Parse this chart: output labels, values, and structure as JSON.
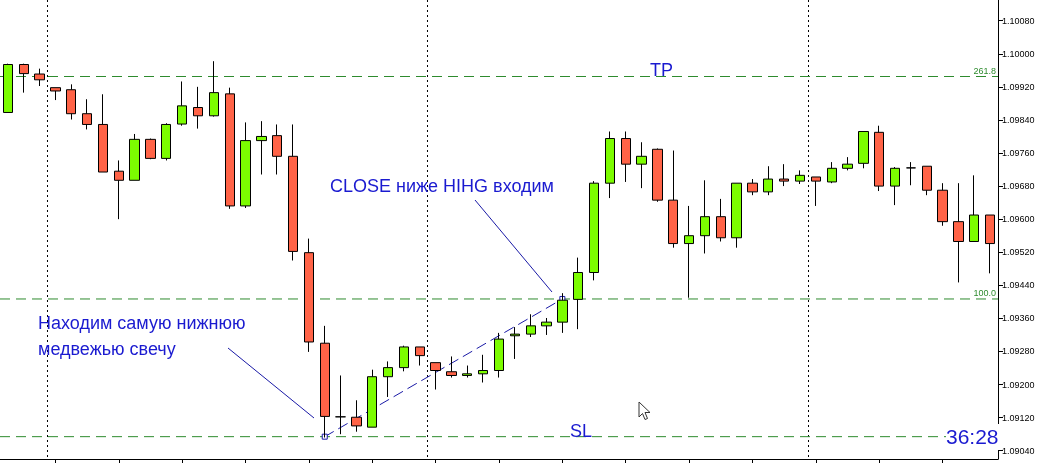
{
  "chart_data": {
    "type": "candlestick",
    "tick_labels": "y",
    "grid": "x",
    "categories": [
      null,
      null,
      null,
      null,
      null,
      null,
      null,
      null,
      null,
      null,
      null,
      null,
      null,
      null,
      null,
      null,
      null,
      null,
      null,
      null,
      null,
      null,
      null,
      null,
      null,
      null,
      null,
      null,
      null,
      null,
      null,
      null,
      null,
      null,
      null,
      null,
      null,
      null,
      null,
      null,
      null,
      null,
      null,
      null,
      null,
      null,
      null,
      null,
      null,
      null,
      null,
      null,
      null,
      null,
      null,
      null,
      null,
      null,
      null,
      null,
      null,
      null,
      null
    ],
    "ohlc": [
      [
        1.09858,
        1.09976,
        1.09858,
        1.09974
      ],
      [
        1.09974,
        1.09976,
        1.09906,
        1.09952
      ],
      [
        1.09951,
        1.09964,
        1.09922,
        1.09937
      ],
      [
        1.09918,
        1.09918,
        1.09888,
        1.0991
      ],
      [
        1.09913,
        1.09926,
        1.09841,
        1.09855
      ],
      [
        1.09855,
        1.0989,
        1.09817,
        1.09829
      ],
      [
        1.09829,
        1.09902,
        1.09714,
        1.09714
      ],
      [
        1.09716,
        1.09742,
        1.096,
        1.09694
      ],
      [
        1.09694,
        1.09806,
        1.09694,
        1.09793
      ],
      [
        1.09793,
        1.09795,
        1.09745,
        1.09747
      ],
      [
        1.09747,
        1.09832,
        1.09742,
        1.09829
      ],
      [
        1.0983,
        1.09933,
        1.09826,
        1.09874
      ],
      [
        1.0987,
        1.0992,
        1.09819,
        1.0985
      ],
      [
        1.0985,
        1.09982,
        1.09848,
        1.09906
      ],
      [
        1.09903,
        1.09918,
        1.09625,
        1.09632
      ],
      [
        1.09632,
        1.09834,
        1.09627,
        1.0979
      ],
      [
        1.0979,
        1.09837,
        1.09708,
        1.098
      ],
      [
        1.09802,
        1.09829,
        1.09708,
        1.09752
      ],
      [
        1.09752,
        1.09829,
        1.095,
        1.09522
      ],
      [
        1.09519,
        1.09553,
        1.09279,
        1.09303
      ],
      [
        1.093,
        1.09342,
        1.09072,
        1.09123
      ],
      [
        1.09122,
        1.09222,
        1.0908,
        1.09122
      ],
      [
        1.09121,
        1.09162,
        1.09086,
        1.091
      ],
      [
        1.09097,
        1.09236,
        1.09097,
        1.09219
      ],
      [
        1.09219,
        1.09256,
        1.0917,
        1.09241
      ],
      [
        1.09241,
        1.09294,
        1.09232,
        1.09291
      ],
      [
        1.09291,
        1.09291,
        1.09246,
        1.0927
      ],
      [
        1.09253,
        1.09253,
        1.09188,
        1.09234
      ],
      [
        1.09231,
        1.09268,
        1.09217,
        1.09222
      ],
      [
        1.09222,
        1.09246,
        1.09217,
        1.09226
      ],
      [
        1.09226,
        1.09272,
        1.09205,
        1.09234
      ],
      [
        1.09234,
        1.09325,
        1.09217,
        1.0931
      ],
      [
        1.09318,
        1.09339,
        1.09262,
        1.09322
      ],
      [
        1.09322,
        1.0937,
        1.09315,
        1.09342
      ],
      [
        1.09342,
        1.09361,
        1.0932,
        1.09351
      ],
      [
        1.09351,
        1.09421,
        1.09325,
        1.09404
      ],
      [
        1.09406,
        1.09507,
        1.09334,
        1.09471
      ],
      [
        1.09471,
        1.09692,
        1.09452,
        1.09687
      ],
      [
        1.09687,
        1.09812,
        1.09651,
        1.09795
      ],
      [
        1.09795,
        1.09812,
        1.0969,
        1.09733
      ],
      [
        1.09733,
        1.09786,
        1.09675,
        1.09752
      ],
      [
        1.09769,
        1.09771,
        1.09642,
        1.09646
      ],
      [
        1.09646,
        1.09766,
        1.09531,
        1.09541
      ],
      [
        1.09541,
        1.09632,
        1.0941,
        1.0956
      ],
      [
        1.0956,
        1.09694,
        1.09517,
        1.09606
      ],
      [
        1.09606,
        1.09649,
        1.09546,
        1.09555
      ],
      [
        1.09555,
        1.09687,
        1.09531,
        1.09687
      ],
      [
        1.09687,
        1.09697,
        1.09658,
        1.09666
      ],
      [
        1.09666,
        1.09728,
        1.09658,
        1.09697
      ],
      [
        1.09697,
        1.09733,
        1.0968,
        1.09692
      ],
      [
        1.09692,
        1.09718,
        1.09685,
        1.09706
      ],
      [
        1.09702,
        1.09702,
        1.09632,
        1.09692
      ],
      [
        1.0969,
        1.09738,
        1.09687,
        1.09723
      ],
      [
        1.09723,
        1.0975,
        1.09718,
        1.09733
      ],
      [
        1.09735,
        1.09812,
        1.09723,
        1.09812
      ],
      [
        1.0981,
        1.09826,
        1.09668,
        1.0968
      ],
      [
        1.0968,
        1.09726,
        1.09634,
        1.09723
      ],
      [
        1.09724,
        1.09738,
        1.09682,
        1.09724
      ],
      [
        1.09728,
        1.09728,
        1.09658,
        1.0967
      ],
      [
        1.0967,
        1.09687,
        1.09584,
        1.09594
      ],
      [
        1.09594,
        1.09687,
        1.09447,
        1.09546
      ],
      [
        1.09546,
        1.09706,
        1.09546,
        1.0961
      ],
      [
        1.0961,
        1.0961,
        1.09469,
        1.09541
      ]
    ],
    "series": [
      {
        "type": "line",
        "color": "#1a1aa6",
        "line_style": "dashed",
        "marker": "square",
        "values": [
          null,
          null,
          null,
          null,
          null,
          null,
          null,
          null,
          null,
          null,
          null,
          null,
          null,
          null,
          null,
          null,
          null,
          null,
          null,
          null,
          1.09074,
          null,
          null,
          null,
          null,
          null,
          null,
          null,
          null,
          null,
          null,
          null,
          null,
          null,
          null,
          1.09407,
          null,
          null,
          null,
          null,
          null,
          null,
          null,
          null,
          null,
          null,
          null,
          null,
          null,
          null,
          null,
          null,
          null,
          null,
          null,
          null,
          null,
          null,
          null,
          null,
          null,
          null,
          null
        ]
      }
    ],
    "ylim": [
      1.0902,
      1.1013
    ],
    "yticks": [
      {
        "value": 1.0904,
        "label": "1.09040"
      },
      {
        "value": 1.0912,
        "label": "1.09120"
      },
      {
        "value": 1.092,
        "label": "1.09200"
      },
      {
        "value": 1.0928,
        "label": "1.09280"
      },
      {
        "value": 1.0936,
        "label": "1.09360"
      },
      {
        "value": 1.0944,
        "label": "1.09440"
      },
      {
        "value": 1.0952,
        "label": "1.09520"
      },
      {
        "value": 1.096,
        "label": "1.09600"
      },
      {
        "value": 1.0968,
        "label": "1.09680"
      },
      {
        "value": 1.0976,
        "label": "1.09760"
      },
      {
        "value": 1.0984,
        "label": "1.09840"
      },
      {
        "value": 1.0992,
        "label": "1.09920"
      },
      {
        "value": 1.1,
        "label": "1.10000"
      },
      {
        "value": 1.1008,
        "label": "1.10080"
      }
    ],
    "ref_lines": [
      {
        "axis": "y",
        "value": 1.09945,
        "color": "#2e8b2e",
        "line_style": "dashed"
      },
      {
        "axis": "y",
        "value": 1.09407,
        "color": "#2e8b2e",
        "line_style": "dashed"
      },
      {
        "axis": "y",
        "value": 1.09074,
        "color": "#2e8b2e",
        "line_style": "dashed"
      }
    ],
    "annotations": [
      "TP",
      "SL",
      "CLOSE ниже HIHG входим",
      "Находим самую нижнюю медвежью свечу",
      "36:28",
      {
        "text": "261.8",
        "y": 1.09945
      },
      {
        "text": "100.0",
        "y": 1.09407
      }
    ]
  }
}
